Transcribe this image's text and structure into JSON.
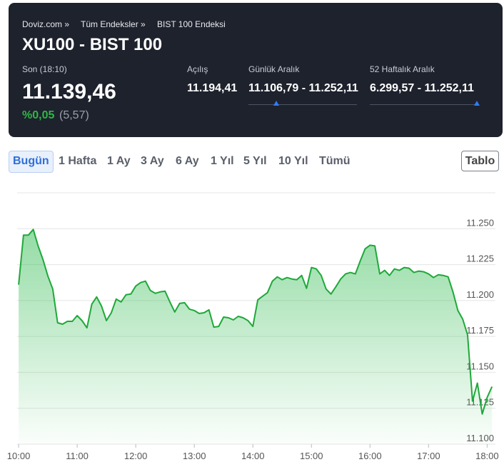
{
  "header": {
    "breadcrumb": [
      "Doviz.com »",
      "Tüm Endeksler »",
      "BIST 100 Endeksi"
    ],
    "title": "XU100 - BIST 100",
    "last": {
      "label": "Son (18:10)",
      "value": "11.139,46",
      "change_pct": "%0,05",
      "change": "(5,57)"
    },
    "stats": [
      {
        "label": "Açılış",
        "value": "11.194,41"
      },
      {
        "label": "Günlük Aralık",
        "value": "11.106,79 - 11.252,11"
      },
      {
        "label": "52 Haftalık Aralık",
        "value": "6.299,57 - 11.252,11"
      }
    ]
  },
  "tabs": {
    "items": [
      "Bugün",
      "1 Hafta",
      "1 Ay",
      "3 Ay",
      "6 Ay",
      "1 Yıl",
      "5 Yıl",
      "10 Yıl",
      "Tümü"
    ],
    "table_button": "Tablo"
  },
  "chart_data": {
    "type": "line",
    "color": "#1fa83a",
    "grid": true,
    "x": [
      600,
      605,
      610,
      615,
      620,
      625,
      630,
      635,
      640,
      645,
      650,
      655,
      660,
      665,
      670,
      675,
      680,
      685,
      690,
      695,
      700,
      705,
      710,
      715,
      720,
      725,
      730,
      735,
      740,
      745,
      750,
      755,
      760,
      765,
      770,
      775,
      780,
      785,
      790,
      795,
      800,
      805,
      810,
      815,
      820,
      825,
      830,
      835,
      840,
      845,
      850,
      855,
      860,
      865,
      870,
      875,
      880,
      885,
      890,
      895,
      900,
      905,
      910,
      915,
      920,
      925,
      930,
      935,
      940,
      945,
      950,
      955,
      960,
      965,
      970,
      975,
      980,
      985,
      990,
      995,
      1000,
      1005,
      1010,
      1015,
      1020,
      1025,
      1030,
      1035,
      1040,
      1045,
      1050,
      1055,
      1060,
      1065,
      1070,
      1075,
      1080,
      1085
    ],
    "values": [
      11211,
      11245.5,
      11245.5,
      11249.5,
      11238,
      11228.5,
      11217,
      11208,
      11184.5,
      11183.5,
      11185.5,
      11185.5,
      11189.5,
      11186,
      11181,
      11197.5,
      11202.5,
      11196,
      11186,
      11191.5,
      11201,
      11199,
      11204,
      11204.5,
      11210,
      11212.5,
      11213.5,
      11207,
      11205,
      11206,
      11206.5,
      11199,
      11192,
      11198,
      11198.5,
      11194,
      11193,
      11191,
      11191.5,
      11193.5,
      11181.5,
      11182,
      11188.5,
      11188,
      11186.5,
      11189,
      11188,
      11186,
      11182,
      11200.5,
      11203,
      11205.5,
      11213.5,
      11216.5,
      11214.5,
      11216,
      11215,
      11214.5,
      11217.5,
      11208.5,
      11223,
      11222,
      11217.5,
      11208,
      11204.5,
      11209.5,
      11215,
      11218.5,
      11219.5,
      11218.5,
      11227.5,
      11236,
      11238.5,
      11238,
      11218.5,
      11221,
      11217.5,
      11222,
      11221,
      11223,
      11222.5,
      11219.5,
      11220.5,
      11220,
      11218.5,
      11216,
      11218,
      11217.5,
      11216.5,
      11206,
      11193,
      11187,
      11176,
      11130,
      11142.5,
      11121,
      11132.5,
      11140
    ],
    "xlim": [
      598.5,
      1088.5
    ],
    "xticks": [
      {
        "value": 600,
        "label": "10:00"
      },
      {
        "value": 660,
        "label": "11:00"
      },
      {
        "value": 720,
        "label": "12:00"
      },
      {
        "value": 780,
        "label": "13:00"
      },
      {
        "value": 840,
        "label": "14:00"
      },
      {
        "value": 900,
        "label": "15:00"
      },
      {
        "value": 960,
        "label": "16:00"
      },
      {
        "value": 1020,
        "label": "17:00"
      },
      {
        "value": 1080,
        "label": "18:00"
      }
    ],
    "ylim": [
      11100,
      11275
    ],
    "yticks": [
      {
        "value": 11100,
        "label": "11.100"
      },
      {
        "value": 11125,
        "label": "11.125"
      },
      {
        "value": 11150,
        "label": "11.150"
      },
      {
        "value": 11175,
        "label": "11.175"
      },
      {
        "value": 11200,
        "label": "11.200"
      },
      {
        "value": 11225,
        "label": "11.225"
      },
      {
        "value": 11250,
        "label": "11.250"
      }
    ]
  }
}
